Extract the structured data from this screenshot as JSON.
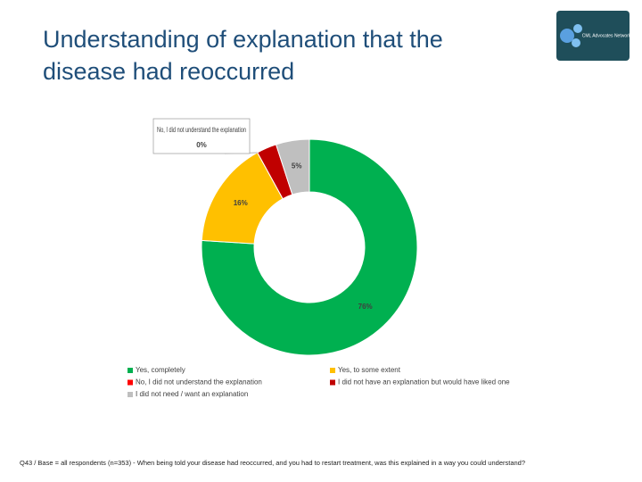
{
  "chart_data": {
    "type": "donut",
    "title": "Understanding of explanation that the disease had reoccurred",
    "categories": [
      "Yes, completely",
      "Yes, to some extent",
      "No, I did not understand the explanation",
      "I did not have an explanation but would have liked one",
      "I did not need / want an explanation"
    ],
    "values": [
      76,
      16,
      0,
      3,
      5
    ],
    "value_labels": [
      "76%",
      "16%",
      "0%",
      null,
      "5%"
    ],
    "colors": [
      "#00b050",
      "#ffc000",
      "#ff0000",
      "#c00000",
      "#bfbfbf"
    ],
    "legend": "bottom",
    "footnote": "Q43 / Base = all respondents (n=353) - When being told your disease had reoccurred, and you had to restart treatment, was this explained in a way you could understand?"
  },
  "logo": "CML Advocates Network"
}
